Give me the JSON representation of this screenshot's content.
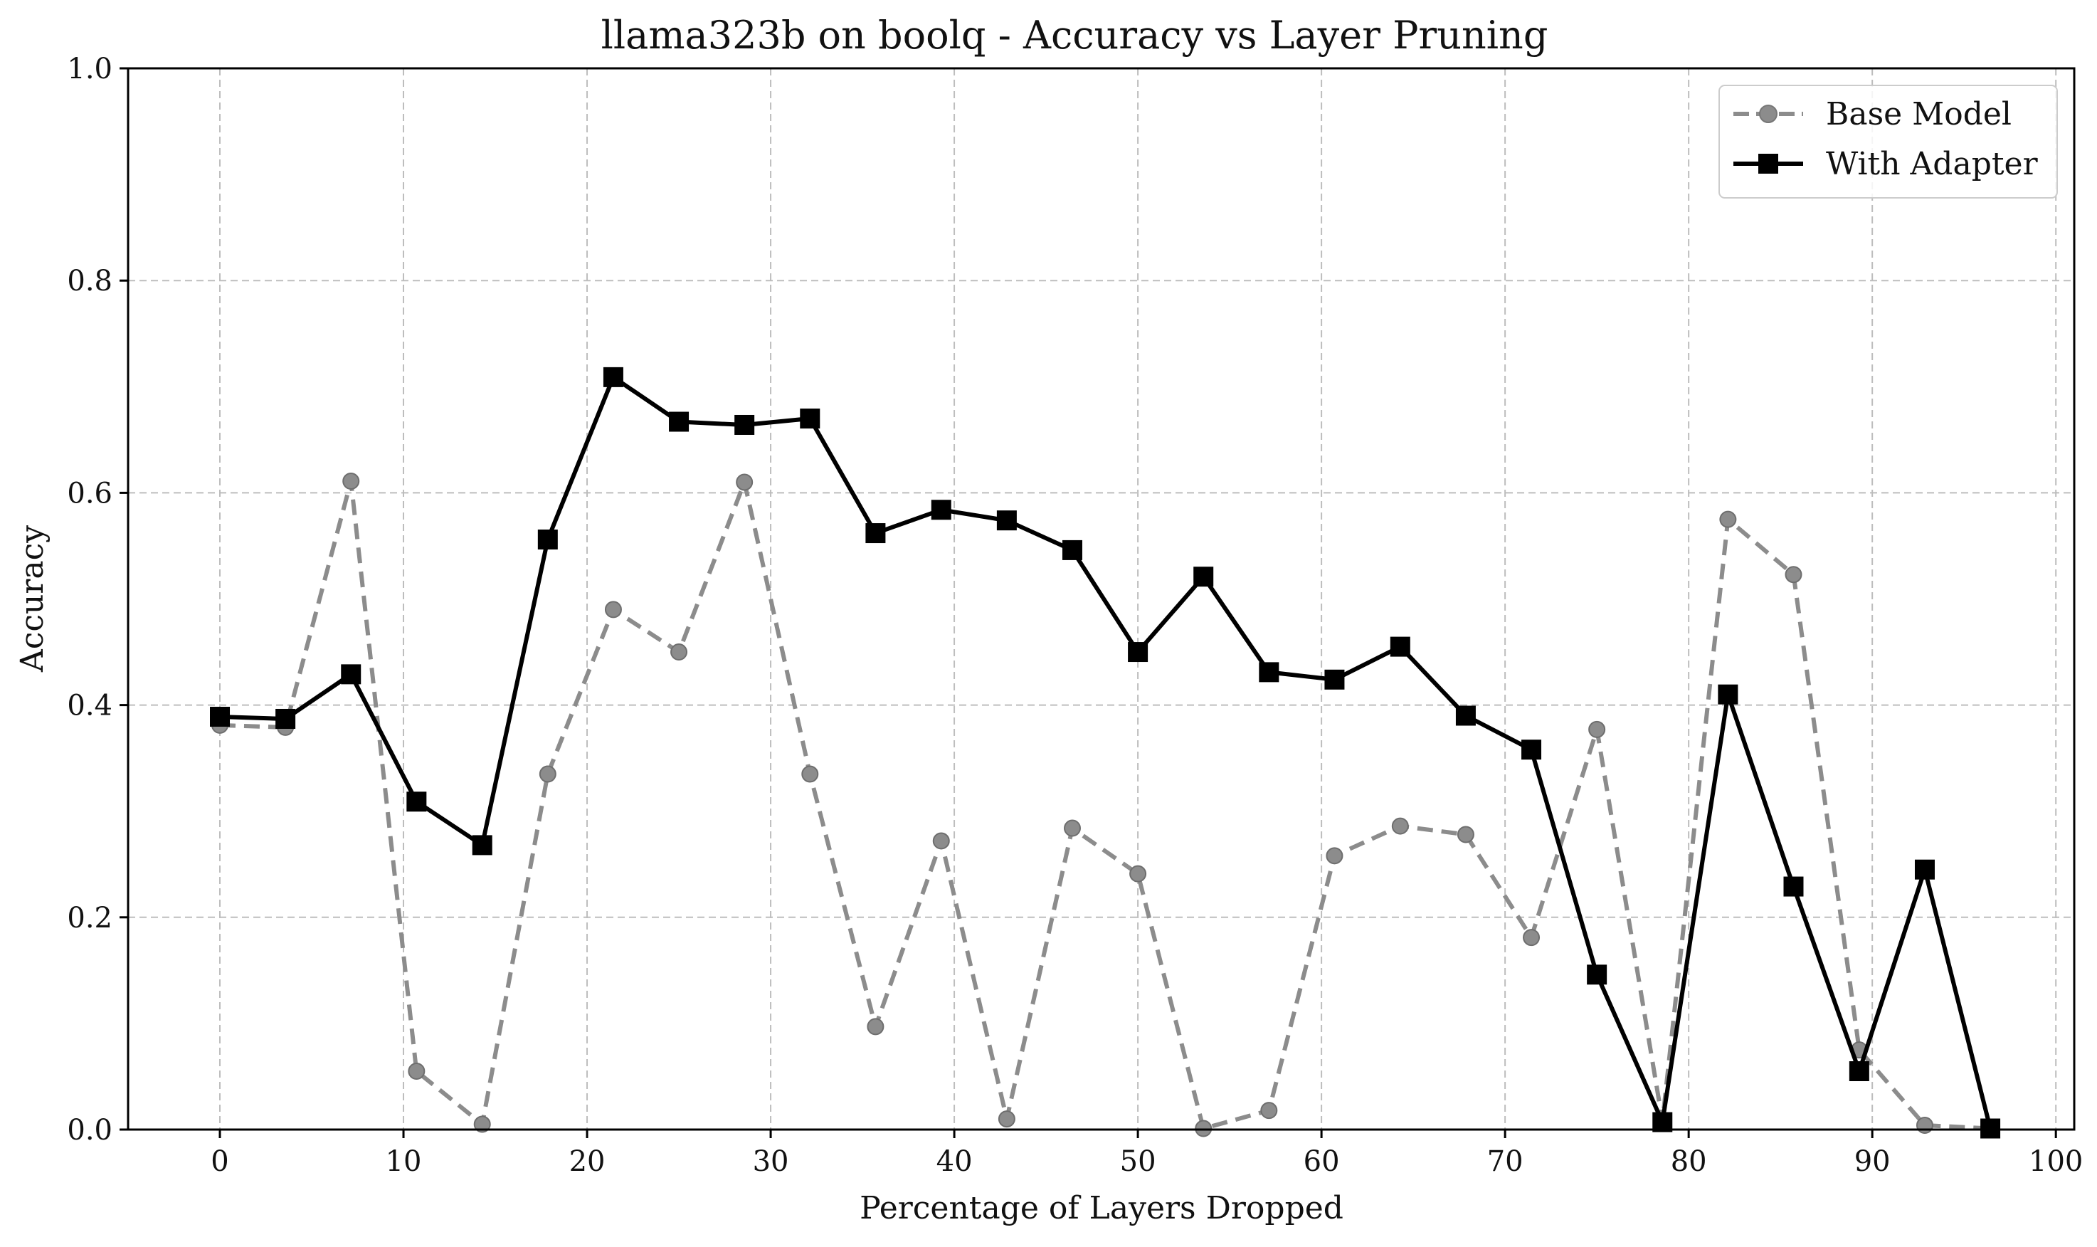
{
  "chart_data": {
    "type": "line",
    "title": "llama323b on boolq - Accuracy vs Layer Pruning",
    "xlabel": "Percentage of Layers Dropped",
    "ylabel": "Accuracy",
    "xlim": [
      -5,
      101
    ],
    "ylim": [
      0,
      1.0
    ],
    "xticks": [
      0,
      10,
      20,
      30,
      40,
      50,
      60,
      70,
      80,
      90,
      100
    ],
    "yticks": [
      0.0,
      0.2,
      0.4,
      0.6,
      0.8,
      1.0
    ],
    "xtick_labels": [
      "0",
      "10",
      "20",
      "30",
      "40",
      "50",
      "60",
      "70",
      "80",
      "90",
      "100"
    ],
    "ytick_labels": [
      "0.0",
      "0.2",
      "0.4",
      "0.6",
      "0.8",
      "1.0"
    ],
    "grid": true,
    "legend_position": "top-right",
    "x": [
      0,
      3.57,
      7.14,
      10.71,
      14.29,
      17.86,
      21.43,
      25.0,
      28.57,
      32.14,
      35.71,
      39.29,
      42.86,
      46.43,
      50.0,
      53.57,
      57.14,
      60.71,
      64.29,
      67.86,
      71.43,
      75.0,
      78.57,
      82.14,
      85.71,
      89.29,
      92.86,
      96.43
    ],
    "series": [
      {
        "name": "Base Model",
        "style": "dashed",
        "marker": "circle",
        "color": "#8c8c8c",
        "values": [
          0.381,
          0.379,
          0.611,
          0.055,
          0.005,
          0.335,
          0.49,
          0.45,
          0.61,
          0.335,
          0.097,
          0.272,
          0.01,
          0.284,
          0.241,
          0.001,
          0.018,
          0.258,
          0.286,
          0.278,
          0.181,
          0.377,
          0.008,
          0.575,
          0.523,
          0.075,
          0.004,
          0.001
        ]
      },
      {
        "name": "With Adapter",
        "style": "solid",
        "marker": "square",
        "color": "#000000",
        "values": [
          0.389,
          0.387,
          0.429,
          0.309,
          0.268,
          0.556,
          0.709,
          0.667,
          0.664,
          0.67,
          0.562,
          0.584,
          0.574,
          0.546,
          0.45,
          0.521,
          0.431,
          0.424,
          0.455,
          0.39,
          0.358,
          0.146,
          0.007,
          0.41,
          0.229,
          0.055,
          0.245,
          0.001
        ]
      }
    ]
  }
}
